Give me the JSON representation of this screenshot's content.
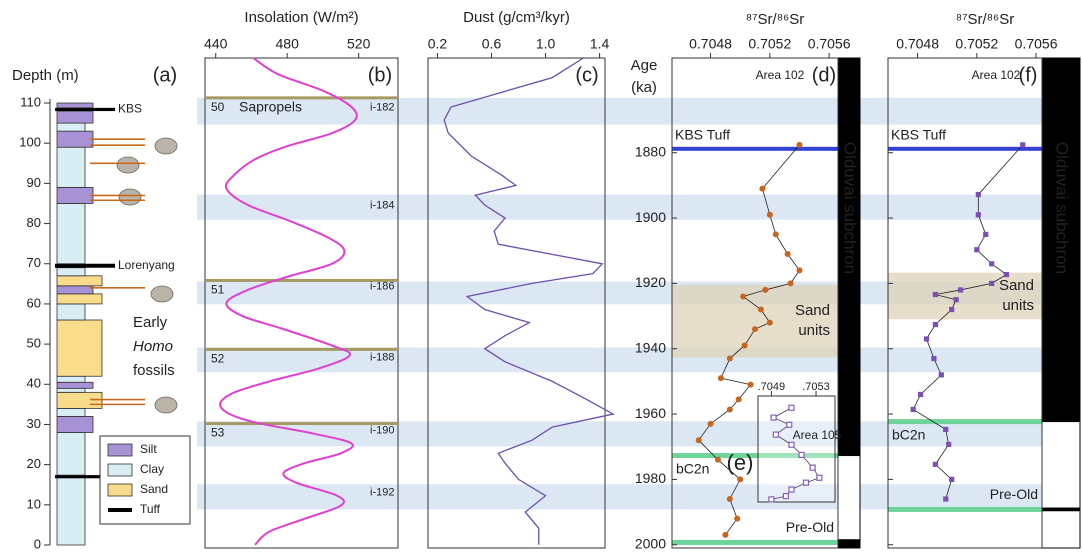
{
  "chart_data": [
    {
      "type": "column",
      "ylabel": "Depth (m)",
      "panel_label": "(a)",
      "ylim": [
        0,
        111
      ],
      "yticks": [
        0,
        10,
        20,
        30,
        40,
        50,
        60,
        70,
        80,
        90,
        100,
        110
      ],
      "legend": [
        {
          "name": "Silt",
          "color": "#a892d6"
        },
        {
          "name": "Clay",
          "color": "#d9edf5"
        },
        {
          "name": "Sand",
          "color": "#f8dc8c"
        },
        {
          "name": "Tuff",
          "color": "#000000"
        }
      ],
      "layers": [
        {
          "from": 0,
          "to": 17,
          "lith": 1
        },
        {
          "from": 16.6,
          "to": 17.4,
          "lith": 3
        },
        {
          "from": 17.4,
          "to": 28,
          "lith": 1
        },
        {
          "from": 28,
          "to": 32,
          "lith": 0
        },
        {
          "from": 32,
          "to": 34,
          "lith": 1
        },
        {
          "from": 34,
          "to": 38,
          "lith": 2
        },
        {
          "from": 38,
          "to": 39,
          "lith": 1
        },
        {
          "from": 39,
          "to": 40.5,
          "lith": 0
        },
        {
          "from": 40.5,
          "to": 42,
          "lith": 1
        },
        {
          "from": 42,
          "to": 56,
          "lith": 2
        },
        {
          "from": 56,
          "to": 60,
          "lith": 1
        },
        {
          "from": 60,
          "to": 62.5,
          "lith": 2
        },
        {
          "from": 62.5,
          "to": 64.5,
          "lith": 0
        },
        {
          "from": 64.5,
          "to": 67,
          "lith": 2
        },
        {
          "from": 67,
          "to": 69,
          "lith": 1
        },
        {
          "from": 69,
          "to": 70,
          "lith": 3
        },
        {
          "from": 70,
          "to": 85,
          "lith": 1
        },
        {
          "from": 85,
          "to": 89,
          "lith": 0
        },
        {
          "from": 89,
          "to": 99,
          "lith": 1
        },
        {
          "from": 99,
          "to": 103,
          "lith": 0
        },
        {
          "from": 103,
          "to": 105,
          "lith": 1
        },
        {
          "from": 105,
          "to": 108,
          "lith": 0
        },
        {
          "from": 108,
          "to": 108.8,
          "lith": 3
        },
        {
          "from": 108.8,
          "to": 110,
          "lith": 0
        }
      ],
      "annotations": [
        {
          "text": "KBS",
          "depth": 108.4
        },
        {
          "text": "Lorenyang",
          "depth": 69.5
        }
      ],
      "fossil_label": [
        "Early",
        "Homo",
        "fossils"
      ],
      "fossil_color": "#c86a1e",
      "fossils": [
        101,
        99.5,
        95,
        87,
        85.8,
        64,
        36.2,
        35
      ]
    },
    {
      "type": "line",
      "title": "Insolation (W/m²)",
      "panel_label": "(b)",
      "color": "#e040d0",
      "xlim": [
        434,
        542
      ],
      "xticks": [
        440,
        480,
        520
      ],
      "ylim": [
        1851,
        2001
      ],
      "ages": [
        1851,
        1856,
        1861,
        1866,
        1870,
        1874,
        1878,
        1882,
        1887,
        1891,
        1896,
        1901,
        1906,
        1910,
        1914,
        1918,
        1922,
        1926,
        1930,
        1934,
        1939,
        1942,
        1946,
        1950,
        1954,
        1958,
        1962,
        1966,
        1969,
        1972,
        1975,
        1978,
        1981,
        1985,
        1988,
        1992,
        1996,
        2000
      ],
      "values": [
        461,
        475,
        500,
        516,
        518,
        505,
        480,
        462,
        450,
        446,
        458,
        482,
        503,
        512,
        505,
        480,
        458,
        446,
        455,
        478,
        505,
        515,
        498,
        470,
        448,
        443,
        458,
        495,
        516,
        510,
        490,
        478,
        485,
        508,
        510,
        490,
        470,
        462
      ],
      "band_color": "#dbe8f4",
      "bands": [
        [
          1863.2,
          1871.4
        ],
        [
          1892.8,
          1900.5
        ],
        [
          1919.4,
          1926.4
        ],
        [
          1939.6,
          1947.2
        ],
        [
          1962.2,
          1969.9
        ],
        [
          1981.5,
          1989.2
        ]
      ],
      "sapropel_label": "Sapropels",
      "sapropel_color": "#a59a62",
      "sapropels": [
        {
          "label": "50",
          "age": 1863.2
        },
        {
          "label": "51",
          "age": 1919.1
        },
        {
          "label": "52",
          "age": 1940.2
        },
        {
          "label": "53",
          "age": 1962.9
        }
      ],
      "cycle_labels": [
        {
          "text": "i-182",
          "age": 1866.2
        },
        {
          "text": "i-184",
          "age": 1896.2
        },
        {
          "text": "i-186",
          "age": 1921
        },
        {
          "text": "i-188",
          "age": 1942.7
        },
        {
          "text": "i-190",
          "age": 1965
        },
        {
          "text": "i-192",
          "age": 1984
        }
      ]
    },
    {
      "type": "line",
      "title": "Dust (g/cm³/kyr)",
      "panel_label": "(c)",
      "color": "#6d4fb0",
      "xlim": [
        0.13,
        1.44
      ],
      "xticks": [
        0.2,
        0.6,
        {
          "value": 1,
          "label": "1.0"
        },
        1.4
      ],
      "ylim": [
        1851,
        2001
      ],
      "ages": [
        1851,
        1857,
        1866,
        1870,
        1874,
        1881,
        1887,
        1890,
        1893,
        1896,
        1900,
        1904,
        1908,
        1914,
        1917,
        1920,
        1924,
        1928,
        1932,
        1936,
        1940,
        1944,
        1950,
        1955,
        1960,
        1964,
        1968,
        1972,
        1975,
        1980,
        1985,
        1990,
        1995,
        2000
      ],
      "values": [
        1.28,
        1.05,
        0.3,
        0.25,
        0.28,
        0.45,
        0.68,
        0.78,
        0.48,
        0.55,
        0.7,
        0.62,
        0.65,
        1.42,
        1.35,
        0.9,
        0.42,
        0.55,
        0.88,
        0.7,
        0.55,
        0.7,
        1.05,
        1.28,
        1.5,
        1.05,
        0.9,
        0.65,
        0.7,
        0.8,
        1.0,
        0.85,
        0.95,
        0.95
      ]
    },
    {
      "type": "sr",
      "title": "⁸⁷Sr/⁸⁶Sr",
      "panel_label": "(d)",
      "area": "Area 102",
      "ylabel": [
        "Age",
        "(ka)"
      ],
      "color": "#c8641e",
      "xlim": [
        0.70454,
        0.70566
      ],
      "xticks": [
        0.7048,
        0.7052,
        0.7056
      ],
      "ylim": [
        1851,
        2001
      ],
      "yticks": [
        1880,
        1900,
        1920,
        1940,
        1960,
        1980,
        2000
      ],
      "ages": [
        1877.6,
        1891,
        1899,
        1905,
        1911,
        1916,
        1920,
        1922,
        1924,
        1928,
        1932,
        1934,
        1939,
        1943,
        1949,
        1951,
        1955.5,
        1958.6,
        1963,
        1968,
        1974,
        1980,
        1986,
        1992,
        1997
      ],
      "values": [
        0.7054,
        0.70515,
        0.7052,
        0.70524,
        0.70532,
        0.7054,
        0.70534,
        0.70517,
        0.70502,
        0.70514,
        0.7052,
        0.7051,
        0.70503,
        0.70493,
        0.70487,
        0.70507,
        0.70499,
        0.70493,
        0.7048,
        0.70472,
        0.70485,
        0.705,
        0.70493,
        0.70498,
        0.7049
      ],
      "tuff": {
        "label": "KBS Tuff",
        "age": 1878.8,
        "color": "#3342d6"
      },
      "sand": {
        "label": [
          "Sand",
          "units"
        ],
        "range": [
          1920.4,
          1942.7
        ],
        "color": "#ddd2b8"
      },
      "boundary_color": "#6fd49a",
      "boundaries": [
        {
          "label": "bC2n",
          "age": 1972.7
        },
        {
          "label": "Pre-Old",
          "age": 1999.3
        }
      ],
      "polarity": {
        "label": "Olduvai subchron",
        "segments": [
          {
            "from": 1851,
            "to": 1972.7,
            "color": "#000000"
          },
          {
            "from": 1972.7,
            "to": 1998.5,
            "color": "#ffffff"
          },
          {
            "from": 1998.5,
            "to": 2001,
            "color": "#000000"
          }
        ]
      }
    },
    {
      "type": "inset",
      "panel_label": "(e)",
      "area": "Area 105",
      "color": "#8a5cc0",
      "xlim": [
        0.70478,
        0.70547
      ],
      "xticks": [
        {
          "value": 0.7049,
          "label": ".7049"
        },
        {
          "value": 0.7053,
          "label": ".7053"
        }
      ],
      "ylim": [
        1954.4,
        1986.8
      ],
      "ages": [
        1958,
        1961,
        1963.2,
        1966.2,
        1969.3,
        1972.4,
        1976.3,
        1979.4,
        1980.9,
        1983,
        1985,
        1986
      ],
      "values": [
        0.70508,
        0.70492,
        0.70506,
        0.70494,
        0.70508,
        0.70517,
        0.70527,
        0.70533,
        0.70521,
        0.70508,
        0.70503,
        0.7049
      ]
    },
    {
      "type": "sr",
      "title": "⁸⁷Sr/⁸⁶Sr",
      "panel_label": "(f)",
      "area": "Area 102",
      "color": "#7d4fb5",
      "xlim": [
        0.7046,
        0.70564
      ],
      "xticks": [
        0.7048,
        0.7052,
        0.7056
      ],
      "ylim": [
        1851,
        2001
      ],
      "yticks": [
        1880,
        1900,
        1920,
        1940,
        1960,
        1980,
        2000
      ],
      "ages": [
        1877.6,
        1892.8,
        1899,
        1905,
        1909.7,
        1914,
        1917.3,
        1920,
        1922,
        1923.4,
        1925,
        1928,
        1932.6,
        1937,
        1943,
        1948,
        1954,
        1958.6,
        1964.7,
        1969.3,
        1975.4,
        1980,
        1986
      ],
      "values": [
        0.70551,
        0.70521,
        0.70521,
        0.70526,
        0.7052,
        0.7053,
        0.7054,
        0.7053,
        0.70509,
        0.70492,
        0.70506,
        0.70503,
        0.70492,
        0.70486,
        0.70491,
        0.70496,
        0.70482,
        0.70477,
        0.70499,
        0.70501,
        0.70492,
        0.70503,
        0.70499
      ],
      "tuff": {
        "label": "KBS Tuff",
        "age": 1878.8,
        "color": "#3342d6"
      },
      "sand": {
        "label": [
          "Sand",
          "units"
        ],
        "range": [
          1916.7,
          1931
        ],
        "color": "#ddd2b8"
      },
      "boundary_color": "#6fd49a",
      "boundaries": [
        {
          "label": "bC2n",
          "age": 1962.3
        },
        {
          "label": "Pre-Old",
          "age": 1989.2
        }
      ],
      "polarity": {
        "label": "Olduvai subchron",
        "segments": [
          {
            "from": 1851,
            "to": 1962.3,
            "color": "#000000"
          },
          {
            "from": 1962.3,
            "to": 1988.8,
            "color": "#ffffff"
          },
          {
            "from": 1988.8,
            "to": 1989.6,
            "color": "#000000"
          },
          {
            "from": 1989.6,
            "to": 2001,
            "color": "#ffffff"
          }
        ]
      }
    }
  ]
}
